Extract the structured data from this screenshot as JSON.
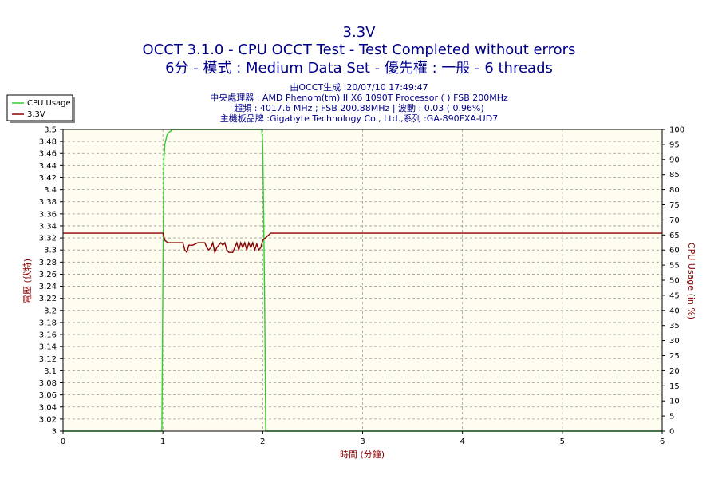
{
  "chart_data": {
    "type": "line",
    "title": "3.3V",
    "subtitle": "OCCT 3.1.0 - CPU OCCT Test - Test Completed without errors",
    "subtitle2": "6分 - 模式 : Medium Data Set - 優先權 : 一般 - 6 threads",
    "info_lines": [
      "由OCCT生成 :20/07/10 17:49:47",
      "中央處理器 : AMD Phenom(tm) II X6 1090T Processor (  ) FSB 200MHz",
      "超頻 : 4017.6 MHz ; FSB 200.88MHz | 波動 : 0.03 ( 0.96%)",
      "主機板品牌 :Gigabyte Technology Co., Ltd.,系列 :GA-890FXA-UD7"
    ],
    "xlabel": "時間 (分鐘)",
    "ylabel": "電壓 (伏特)",
    "y2label": "CPU Usage (in %)",
    "xlim": [
      0,
      6
    ],
    "ylim": [
      3.0,
      3.5
    ],
    "y2lim": [
      0,
      100
    ],
    "x_ticks": [
      0,
      1,
      2,
      3,
      4,
      5,
      6
    ],
    "y_ticks": [
      "3",
      "3.02",
      "3.04",
      "3.06",
      "3.08",
      "3.1",
      "3.12",
      "3.14",
      "3.16",
      "3.18",
      "3.2",
      "3.22",
      "3.24",
      "3.26",
      "3.28",
      "3.3",
      "3.32",
      "3.34",
      "3.36",
      "3.38",
      "3.4",
      "3.42",
      "3.44",
      "3.46",
      "3.48",
      "3.5"
    ],
    "y2_ticks": [
      0,
      5,
      10,
      15,
      20,
      25,
      30,
      35,
      40,
      45,
      50,
      55,
      60,
      65,
      70,
      75,
      80,
      85,
      90,
      95,
      100
    ],
    "grid": true,
    "legend_position": "top-left",
    "series": [
      {
        "name": "CPU Usage",
        "axis": "right",
        "color": "#33cc33",
        "x": [
          0,
          0.99,
          1.0,
          1.01,
          1.02,
          1.04,
          1.06,
          1.1,
          1.2,
          1.5,
          1.8,
          1.98,
          1.99,
          2.0,
          2.01,
          2.02,
          2.03,
          2.1,
          3.0,
          6.0
        ],
        "y": [
          0,
          0,
          50,
          90,
          95,
          98,
          99,
          100,
          100,
          100,
          100,
          100,
          100,
          95,
          70,
          40,
          0,
          0,
          0,
          0
        ]
      },
      {
        "name": "3.3V",
        "axis": "left",
        "color": "#8B0000",
        "x": [
          0,
          1.0,
          1.02,
          1.05,
          1.2,
          1.22,
          1.24,
          1.26,
          1.3,
          1.35,
          1.42,
          1.44,
          1.46,
          1.48,
          1.5,
          1.52,
          1.54,
          1.56,
          1.58,
          1.6,
          1.62,
          1.64,
          1.66,
          1.7,
          1.72,
          1.74,
          1.76,
          1.78,
          1.8,
          1.82,
          1.84,
          1.86,
          1.88,
          1.9,
          1.92,
          1.94,
          1.96,
          1.98,
          2.0,
          2.04,
          2.08,
          6.0
        ],
        "y": [
          3.328,
          3.328,
          3.316,
          3.312,
          3.312,
          3.3,
          3.296,
          3.308,
          3.308,
          3.312,
          3.312,
          3.304,
          3.3,
          3.304,
          3.312,
          3.296,
          3.304,
          3.308,
          3.312,
          3.308,
          3.312,
          3.3,
          3.296,
          3.296,
          3.304,
          3.312,
          3.3,
          3.312,
          3.304,
          3.312,
          3.3,
          3.312,
          3.304,
          3.312,
          3.3,
          3.31,
          3.3,
          3.304,
          3.316,
          3.322,
          3.328,
          3.328
        ]
      }
    ]
  }
}
